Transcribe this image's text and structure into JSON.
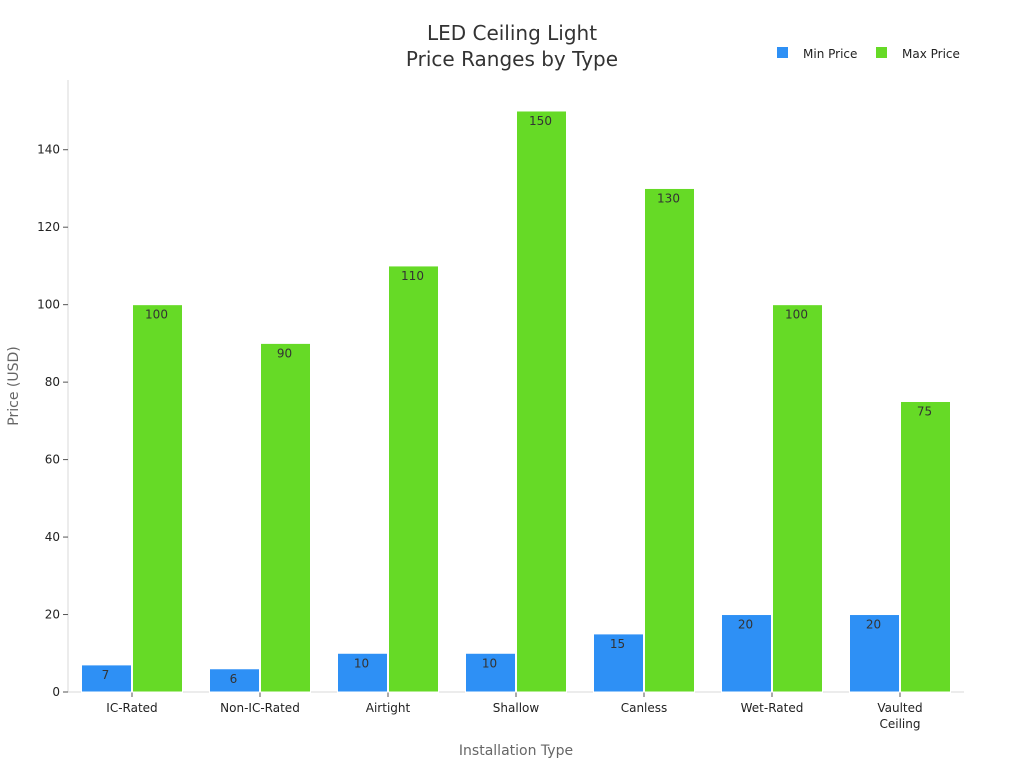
{
  "chart_data": {
    "type": "bar",
    "title": [
      "LED Ceiling Light",
      "Price Ranges by Type"
    ],
    "xlabel": "Installation Type",
    "ylabel": "Price (USD)",
    "categories": [
      [
        "IC-Rated"
      ],
      [
        "Non-IC-Rated"
      ],
      [
        "Airtight"
      ],
      [
        "Shallow"
      ],
      [
        "Canless"
      ],
      [
        "Wet-Rated"
      ],
      [
        "Vaulted",
        "Ceiling"
      ]
    ],
    "series": [
      {
        "name": "Min Price",
        "color": "#2e90f5",
        "values": [
          7,
          6,
          10,
          10,
          15,
          20,
          20
        ]
      },
      {
        "name": "Max Price",
        "color": "#66da26",
        "values": [
          100,
          90,
          110,
          150,
          130,
          100,
          75
        ]
      }
    ],
    "ylim": [
      0,
      158
    ],
    "yticks": [
      0,
      20,
      40,
      60,
      80,
      100,
      120,
      140
    ],
    "grid": false,
    "legend": "top-right",
    "data_labels": true
  }
}
